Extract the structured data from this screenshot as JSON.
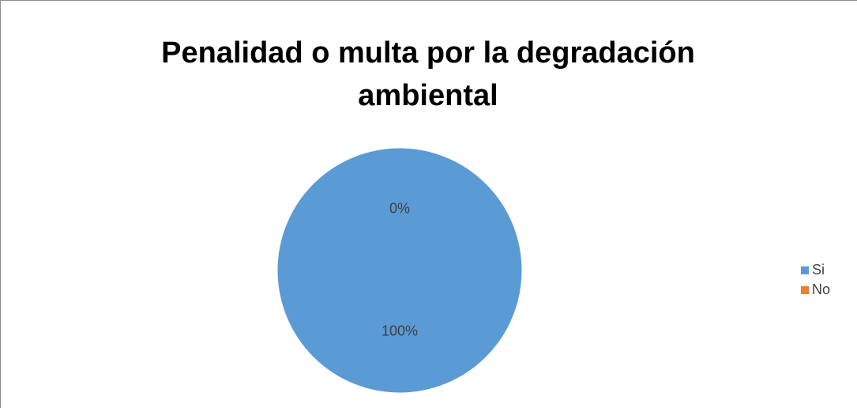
{
  "chart_data": {
    "type": "pie",
    "title": "Penalidad o multa por la degradación ambiental",
    "categories": [
      "Si",
      "No"
    ],
    "values": [
      100,
      0
    ],
    "value_labels": [
      "100%",
      "0%"
    ],
    "colors": [
      "#5b9bd5",
      "#ed7d31"
    ],
    "legend": "right"
  }
}
